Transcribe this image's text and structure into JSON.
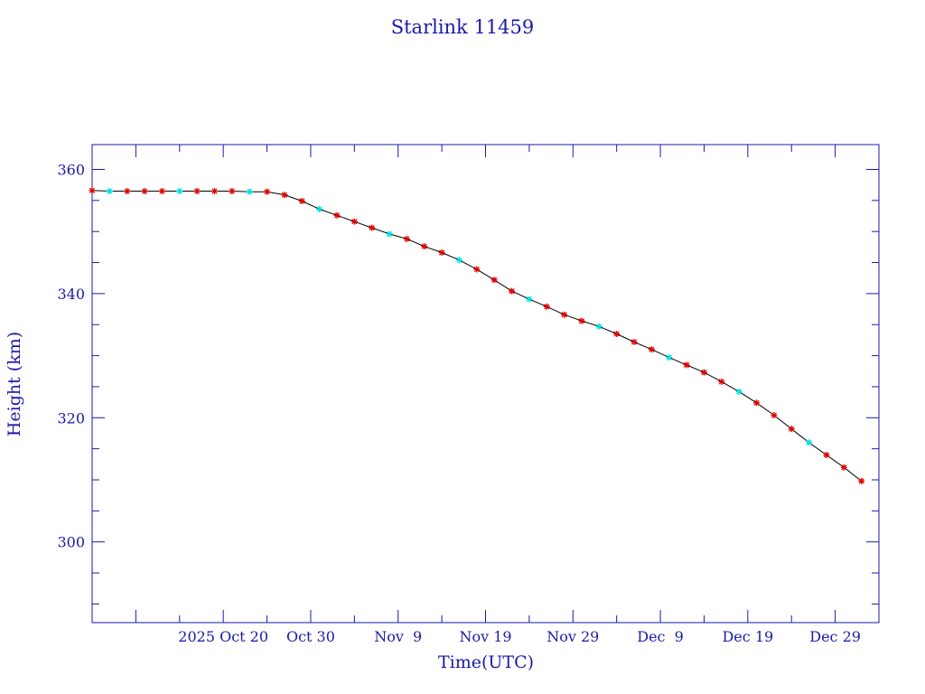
{
  "chart_data": {
    "type": "scatter",
    "title": "Starlink 11459",
    "xlabel": "Time(UTC)",
    "ylabel": "Height (km)",
    "ylim": [
      287,
      364
    ],
    "xlim": [
      "2025-10-05",
      "2026-01-03"
    ],
    "y_ticks": [
      300,
      320,
      340,
      360
    ],
    "y_tick_labels": [
      "300",
      "320",
      "340",
      "360"
    ],
    "x_ticks": [
      "2025-10-20",
      "2025-10-30",
      "2025-11-09",
      "2025-11-19",
      "2025-11-29",
      "2025-12-09",
      "2025-12-19",
      "2025-12-29"
    ],
    "x_tick_labels": [
      "2025 Oct 20",
      "Oct 30",
      "Nov  9",
      "Nov 19",
      "Nov 29",
      "Dec  9",
      "Dec 19",
      "Dec 29"
    ],
    "grid": false,
    "legend": "none",
    "colors": {
      "axes": "#1a1aa8",
      "line": "#000000",
      "markers": "#e00000",
      "alt_markers": "#00e0e0"
    },
    "series": [
      {
        "values": [
          [
            "2025-10-05",
            356.6
          ],
          [
            "2025-10-07",
            356.5
          ],
          [
            "2025-10-09",
            356.5
          ],
          [
            "2025-10-11",
            356.5
          ],
          [
            "2025-10-13",
            356.5
          ],
          [
            "2025-10-15",
            356.5
          ],
          [
            "2025-10-17",
            356.5
          ],
          [
            "2025-10-19",
            356.5
          ],
          [
            "2025-10-21",
            356.5
          ],
          [
            "2025-10-23",
            356.4
          ],
          [
            "2025-10-25",
            356.4
          ],
          [
            "2025-10-27",
            355.9
          ],
          [
            "2025-10-29",
            354.9
          ],
          [
            "2025-10-31",
            353.6
          ],
          [
            "2025-11-02",
            352.6
          ],
          [
            "2025-11-04",
            351.6
          ],
          [
            "2025-11-06",
            350.6
          ],
          [
            "2025-11-08",
            349.6
          ],
          [
            "2025-11-10",
            348.8
          ],
          [
            "2025-11-12",
            347.6
          ],
          [
            "2025-11-14",
            346.6
          ],
          [
            "2025-11-16",
            345.4
          ],
          [
            "2025-11-18",
            343.9
          ],
          [
            "2025-11-20",
            342.2
          ],
          [
            "2025-11-22",
            340.4
          ],
          [
            "2025-11-24",
            339.1
          ],
          [
            "2025-11-26",
            337.9
          ],
          [
            "2025-11-28",
            336.6
          ],
          [
            "2025-11-30",
            335.6
          ],
          [
            "2025-12-02",
            334.7
          ],
          [
            "2025-12-04",
            333.5
          ],
          [
            "2025-12-06",
            332.2
          ],
          [
            "2025-12-08",
            331.0
          ],
          [
            "2025-12-10",
            329.7
          ],
          [
            "2025-12-12",
            328.5
          ],
          [
            "2025-12-14",
            327.3
          ],
          [
            "2025-12-16",
            325.8
          ],
          [
            "2025-12-18",
            324.2
          ],
          [
            "2025-12-20",
            322.4
          ],
          [
            "2025-12-22",
            320.4
          ],
          [
            "2025-12-24",
            318.2
          ],
          [
            "2025-12-26",
            316.0
          ],
          [
            "2025-12-28",
            314.0
          ],
          [
            "2025-12-30",
            312.0
          ],
          [
            "2026-01-01",
            309.8
          ]
        ]
      }
    ]
  }
}
